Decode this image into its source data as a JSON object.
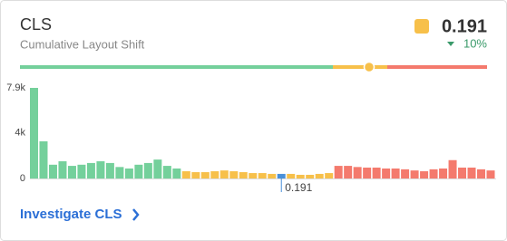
{
  "chart_data": {
    "type": "bar",
    "title": "CLS",
    "subtitle": "Cumulative Layout Shift",
    "score": 0.191,
    "change": {
      "value": 10,
      "label": "10%"
    },
    "link": "Investigate CLS",
    "categories": [
      null,
      null,
      null,
      null,
      null,
      null,
      null,
      null,
      null,
      null,
      null,
      null,
      null,
      null,
      null,
      null,
      null,
      null,
      null,
      null,
      null,
      null,
      null,
      null,
      null,
      null,
      null,
      null,
      null,
      null,
      null,
      null,
      null,
      null,
      null,
      null,
      null,
      null,
      null,
      null,
      null,
      null,
      null,
      null,
      null,
      null,
      null,
      null,
      null
    ],
    "values": [
      7900,
      3240,
      1200,
      1500,
      1100,
      1200,
      1350,
      1500,
      1350,
      1000,
      870,
      1200,
      1350,
      1650,
      1100,
      870,
      630,
      550,
      550,
      630,
      700,
      630,
      550,
      470,
      470,
      400,
      400,
      400,
      320,
      320,
      400,
      470,
      1100,
      1100,
      1000,
      950,
      950,
      870,
      870,
      800,
      700,
      630,
      800,
      870,
      1600,
      950,
      950,
      800,
      700
    ],
    "colors": [
      "#74d09b",
      "#74d09b",
      "#74d09b",
      "#74d09b",
      "#74d09b",
      "#74d09b",
      "#74d09b",
      "#74d09b",
      "#74d09b",
      "#74d09b",
      "#74d09b",
      "#74d09b",
      "#74d09b",
      "#74d09b",
      "#74d09b",
      "#74d09b",
      "#f7c04a",
      "#f7c04a",
      "#f7c04a",
      "#f7c04a",
      "#f7c04a",
      "#f7c04a",
      "#f7c04a",
      "#f7c04a",
      "#f7c04a",
      "#f7c04a",
      "#4a90d9",
      "#f7c04a",
      "#f7c04a",
      "#f7c04a",
      "#f7c04a",
      "#f7c04a",
      "#f47a6d",
      "#f47a6d",
      "#f47a6d",
      "#f47a6d",
      "#f47a6d",
      "#f47a6d",
      "#f47a6d",
      "#f47a6d",
      "#f47a6d",
      "#f47a6d",
      "#f47a6d",
      "#f47a6d",
      "#f47a6d",
      "#f47a6d",
      "#f47a6d",
      "#f47a6d",
      "#f47a6d"
    ],
    "highlight_color": "#4a90d9",
    "ylim": [
      0,
      7900
    ],
    "yticks": [
      {
        "value": 7900,
        "label": "7.9k"
      },
      {
        "value": 4000,
        "label": "4k"
      },
      0
    ]
  }
}
